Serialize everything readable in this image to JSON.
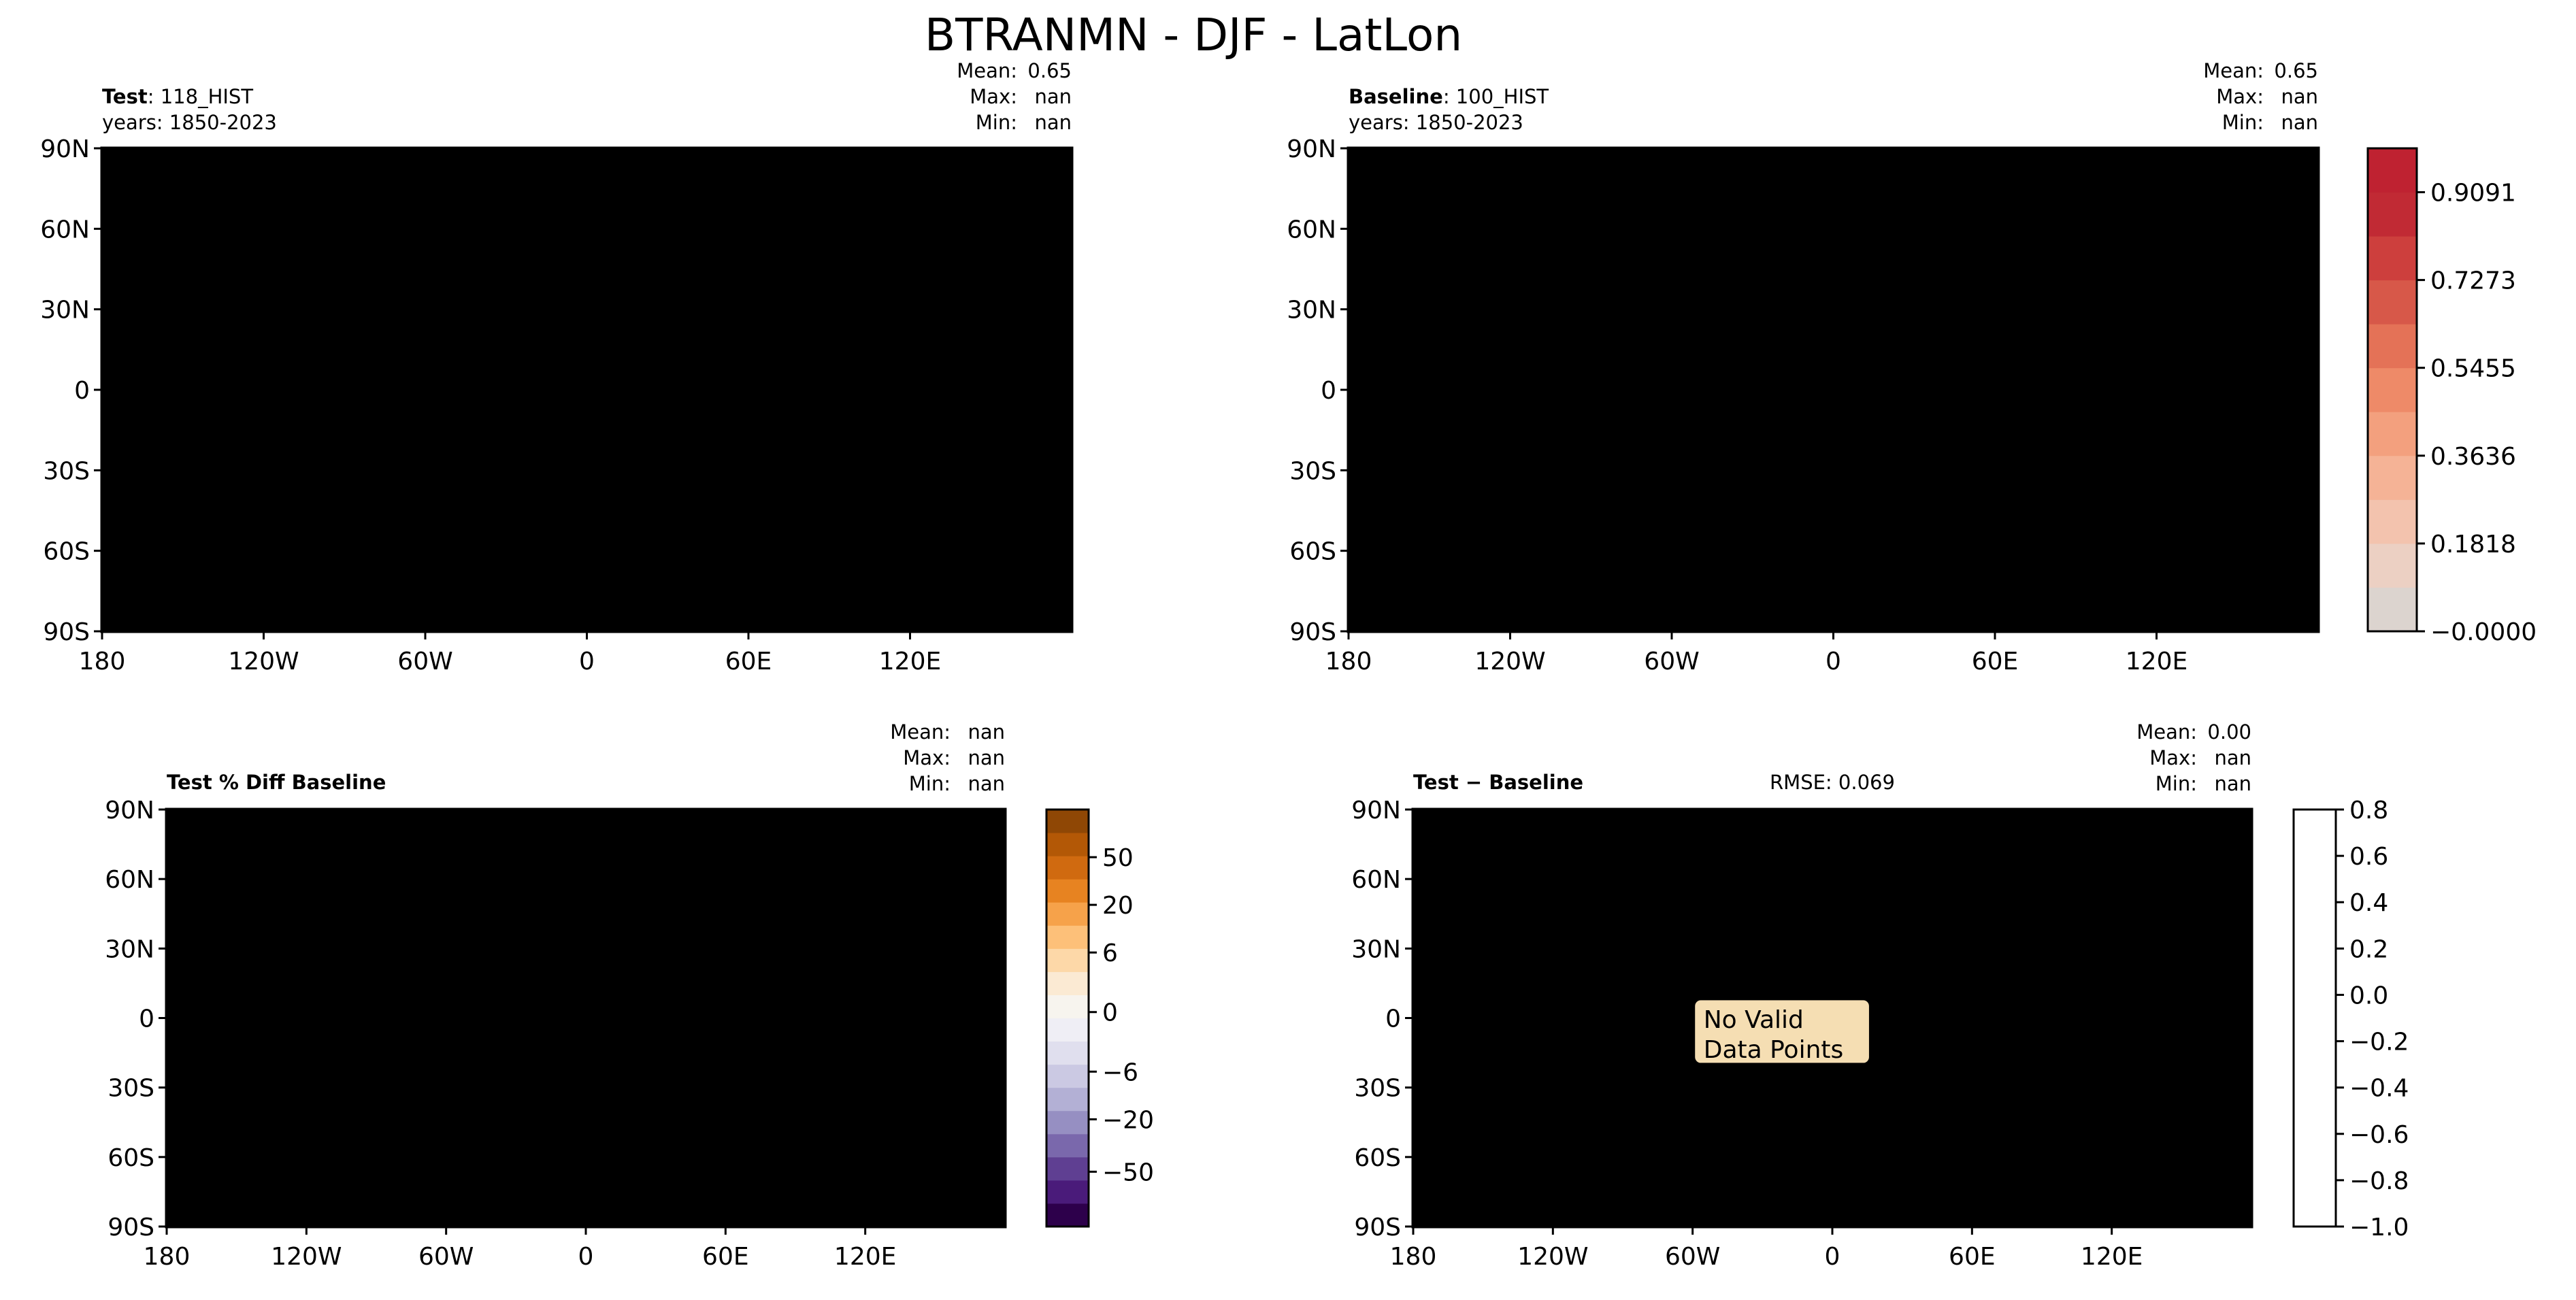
{
  "figure": {
    "title": "BTRANMN - DJF - LatLon"
  },
  "palettes": {
    "seq": [
      "#dcd4cf",
      "#ecd0c3",
      "#f3c3ae",
      "#f5b396",
      "#f3a07e",
      "#ee8a68",
      "#e47257",
      "#d75849",
      "#cd3f3d",
      "#c12a34",
      "#bf2231"
    ],
    "div": [
      "#2d004b",
      "#4a1b7a",
      "#5f3f92",
      "#7a68ac",
      "#968fc2",
      "#b3b0d5",
      "#cbc9e3",
      "#e0dfee",
      "#efeef5",
      "#f7f4ee",
      "#fbead3",
      "#fdd8a8",
      "#fdc079",
      "#f6a24a",
      "#e78321",
      "#d06a10",
      "#b35806",
      "#8f4705"
    ],
    "land": "#c8222f",
    "diff_neutral": "#f7f1ea",
    "badge_bg": "#f5deb3"
  },
  "axes": {
    "lon_ticks": [
      "180",
      "120W",
      "60W",
      "0",
      "60E",
      "120E"
    ],
    "lat_ticks": [
      "90N",
      "60N",
      "30N",
      "0",
      "30S",
      "60S",
      "90S"
    ]
  },
  "panels": {
    "test": {
      "label_bold": "Test",
      "label_rest": ": 118_HIST",
      "years": "years: 1850-2023",
      "stats": {
        "mean_label": "Mean:",
        "mean": "0.65",
        "max_label": "Max:",
        "max": "nan",
        "min_label": "Min:",
        "min": "nan"
      }
    },
    "baseline": {
      "label_bold": "Baseline",
      "label_rest": ": 100_HIST",
      "years": "years: 1850-2023",
      "stats": {
        "mean_label": "Mean:",
        "mean": "0.65",
        "max_label": "Max:",
        "max": "nan",
        "min_label": "Min:",
        "min": "nan"
      }
    },
    "pctdiff": {
      "label_bold": "Test % Diff Baseline",
      "stats": {
        "mean_label": "Mean:",
        "mean": "nan",
        "max_label": "Max:",
        "max": "nan",
        "min_label": "Min:",
        "min": "nan"
      }
    },
    "diff": {
      "label_bold": "Test",
      "label_rest": " − Baseline",
      "rmse": "RMSE: 0.069",
      "stats": {
        "mean_label": "Mean:",
        "mean": "0.00",
        "max_label": "Max:",
        "max": "nan",
        "min_label": "Min:",
        "min": "nan"
      },
      "no_data": [
        "No Valid",
        "Data Points"
      ]
    }
  },
  "colorbars": {
    "main": {
      "ticks": [
        "0.9091",
        "0.7273",
        "0.5455",
        "0.3636",
        "0.1818",
        "−0.0000"
      ]
    },
    "pctdiff": {
      "ticks": [
        "50",
        "20",
        "6",
        "0",
        "−6",
        "−20",
        "−50"
      ]
    },
    "diff": {
      "ticks": [
        "0.8",
        "0.6",
        "0.4",
        "0.2",
        "0.0",
        "−0.2",
        "−0.4",
        "−0.6",
        "−0.8",
        "−1.0"
      ]
    }
  },
  "chart_data": [
    {
      "type": "heatmap",
      "panel": "Test",
      "variable": "BTRANMN",
      "season": "DJF",
      "case": "118_HIST",
      "years": "1850-2023",
      "mean": 0.65,
      "max": "nan",
      "min": "nan",
      "colorbar_range": [
        0,
        1
      ],
      "x_range": [
        -180,
        180
      ],
      "y_range": [
        -90,
        90
      ]
    },
    {
      "type": "heatmap",
      "panel": "Baseline",
      "variable": "BTRANMN",
      "season": "DJF",
      "case": "100_HIST",
      "years": "1850-2023",
      "mean": 0.65,
      "max": "nan",
      "min": "nan",
      "colorbar_range": [
        0,
        1
      ],
      "x_range": [
        -180,
        180
      ],
      "y_range": [
        -90,
        90
      ]
    },
    {
      "type": "heatmap",
      "panel": "Test % Diff Baseline",
      "mean": "nan",
      "max": "nan",
      "min": "nan",
      "colorbar_ticks": [
        50,
        20,
        6,
        0,
        -6,
        -20,
        -50
      ],
      "x_range": [
        -180,
        180
      ],
      "y_range": [
        -90,
        90
      ]
    },
    {
      "type": "heatmap",
      "panel": "Test − Baseline",
      "rmse": 0.069,
      "mean": 0.0,
      "max": "nan",
      "min": "nan",
      "colorbar_range": [
        -1.0,
        0.8
      ],
      "annotation": "No Valid Data Points",
      "x_range": [
        -180,
        180
      ],
      "y_range": [
        -90,
        90
      ]
    }
  ]
}
